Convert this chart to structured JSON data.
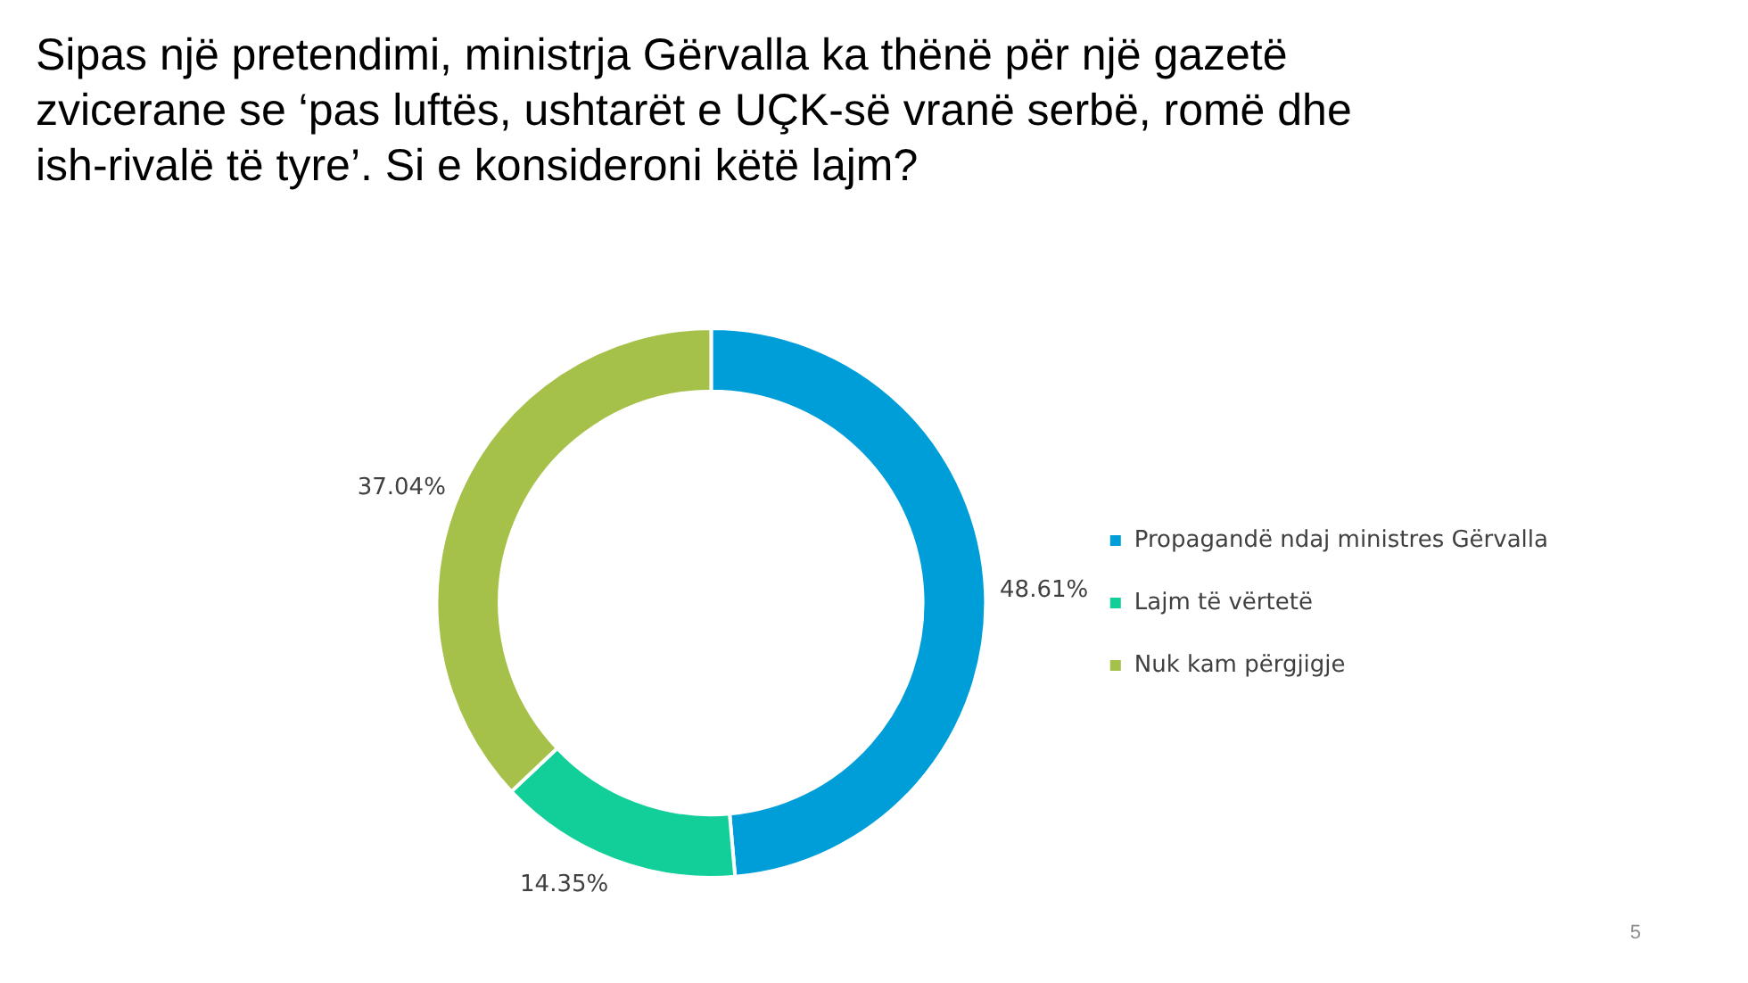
{
  "chart_data": {
    "type": "donut",
    "title": "Sipas një pretendimi, ministrja Gërvalla ka thënë për një gazetë zvicerane se ‘pas luftës, ushtarët e UÇK-së vranë serbë, romë dhe ish-rivalë të tyre’. Si e konsideroni këtë lajm?",
    "categories": [
      "Propagandë ndaj ministres Gërvalla",
      "Lajm të vërtetë",
      "Nuk kam përgjigje"
    ],
    "values": [
      48.61,
      14.35,
      37.04
    ],
    "colors": [
      "#009ed8",
      "#12cf9a",
      "#a6c14a"
    ],
    "value_labels": [
      "48.61%",
      "14.35%",
      "37.04%"
    ],
    "legend": "right",
    "annotations": [
      "5"
    ]
  }
}
